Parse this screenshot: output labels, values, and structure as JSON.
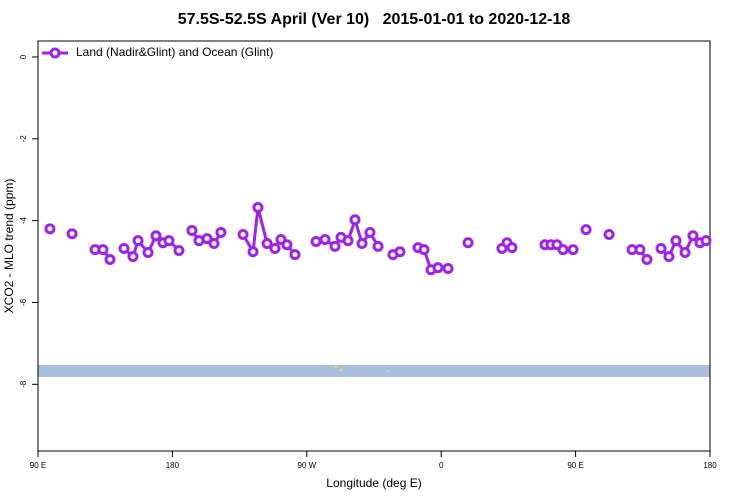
{
  "chart_data": {
    "type": "line",
    "title": "57.5S-52.5S April (Ver 10)   2015-01-01 to 2020-12-18",
    "x_label": "Longitude (deg E)",
    "y_label": "XCO2 - MLO trend (ppm)",
    "xlim": [
      90,
      540
    ],
    "xticks": [
      {
        "value": 90,
        "label": "90 E"
      },
      180,
      {
        "value": 270,
        "label": "90 W"
      },
      {
        "value": 360,
        "label": "0"
      },
      {
        "value": 450,
        "label": "90 E"
      },
      {
        "value": 540,
        "label": "180"
      }
    ],
    "ylim": [
      -9.63,
      0.39
    ],
    "yticks": [
      0,
      -2,
      -4,
      -6,
      -8
    ],
    "legend": "upper left",
    "series": [
      {
        "name": "Land (Nadir&Glint) and Ocean (Glint)",
        "color": "#a020f0",
        "x": [
          98.0,
          null,
          112.8,
          null,
          128.2,
          133.5,
          138.2,
          null,
          147.6,
          153.6,
          157.0,
          163.7,
          169.0,
          173.7,
          177.7,
          184.4,
          null,
          193.1,
          197.8,
          203.2,
          207.9,
          212.5,
          null,
          227.3,
          234.0,
          237.3,
          243.4,
          248.7,
          252.7,
          256.7,
          262.1,
          null,
          276.2,
          282.2,
          288.9,
          292.9,
          297.6,
          302.3,
          307.0,
          312.3,
          317.7,
          null,
          327.7,
          332.4,
          null,
          344.5,
          348.5,
          353.2,
          357.9,
          364.6,
          null,
          378.0,
          null,
          400.7,
          404.1,
          407.4,
          null,
          429.5,
          433.5,
          437.5,
          441.6,
          448.3,
          null,
          457.0,
          null,
          472.4,
          null,
          487.8,
          493.1,
          497.8,
          null,
          507.2,
          512.5,
          517.2,
          523.3,
          528.6,
          533.3,
          537.3
        ],
        "values": [
          -4.2,
          null,
          -4.32,
          null,
          -4.71,
          -4.71,
          -4.95,
          null,
          -4.68,
          -4.88,
          -4.49,
          -4.78,
          -4.37,
          -4.54,
          -4.49,
          -4.73,
          null,
          -4.24,
          -4.49,
          -4.44,
          -4.56,
          -4.29,
          null,
          -4.34,
          -4.76,
          -3.68,
          -4.56,
          -4.68,
          -4.46,
          -4.59,
          -4.83,
          null,
          -4.51,
          -4.46,
          -4.63,
          -4.41,
          -4.49,
          -3.98,
          -4.56,
          -4.29,
          -4.63,
          null,
          -4.83,
          -4.76,
          null,
          -4.66,
          -4.71,
          -5.2,
          -5.15,
          -5.17,
          null,
          -4.54,
          null,
          -4.68,
          -4.54,
          -4.66,
          null,
          -4.59,
          -4.59,
          -4.59,
          -4.71,
          -4.71,
          null,
          -4.22,
          null,
          -4.34,
          null,
          -4.71,
          -4.71,
          -4.95,
          null,
          -4.68,
          -4.88,
          -4.49,
          -4.78,
          -4.37,
          -4.54,
          -4.49
        ]
      }
    ]
  }
}
